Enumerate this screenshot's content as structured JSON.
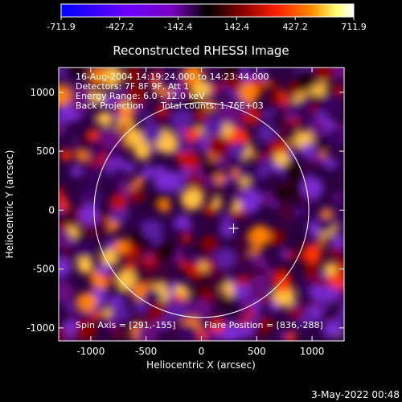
{
  "colorbar": {
    "ticks": [
      "-711.9",
      "-427.2",
      "-142.4",
      "142.4",
      "427.2",
      "711.9"
    ],
    "colors": [
      "#0000ff",
      "#6a00ff",
      "#7a00c0",
      "#000000",
      "#8a0000",
      "#ff2000",
      "#ff9000",
      "#ffff70",
      "#ffffff"
    ]
  },
  "title": "Reconstructed RHESSI Image",
  "info": {
    "line1": "16-Aug-2004 14:19:24.000 to 14:23:44.000",
    "line2": "Detectors: 7F 8F 9F, Att 1",
    "line3": "Energy Range: 6.0 - 12.0 keV",
    "line4a": "Back Projection",
    "line4b": "Total counts: 1.76E+03"
  },
  "footer_left": "Spin Axis = [291,-155]",
  "footer_right": "Flare Position = [836,-288]",
  "x_axis": {
    "label": "Heliocentric X (arcsec)",
    "ticks": [
      {
        "value": -1000,
        "label": "-1000"
      },
      {
        "value": -500,
        "label": "-500"
      },
      {
        "value": 0,
        "label": "0"
      },
      {
        "value": 500,
        "label": "500"
      },
      {
        "value": 1000,
        "label": "1000"
      }
    ],
    "range": [
      -1290,
      1290
    ]
  },
  "y_axis": {
    "label": "Heliocentric Y (arcsec)",
    "ticks": [
      {
        "value": 1000,
        "label": "1000"
      },
      {
        "value": 500,
        "label": "500"
      },
      {
        "value": 0,
        "label": "0"
      },
      {
        "value": -500,
        "label": "-500"
      },
      {
        "value": -1000,
        "label": "-1000"
      }
    ],
    "range": [
      -1110,
      1210
    ]
  },
  "solar_disk": {
    "center": [
      0,
      0
    ],
    "radius_arcsec": 940
  },
  "spin_axis_marker": [
    291,
    -155
  ],
  "timestamp": "3-May-2022 00:48"
}
